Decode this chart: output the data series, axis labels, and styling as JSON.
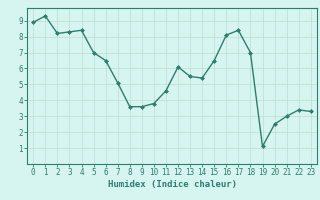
{
  "x": [
    0,
    1,
    2,
    3,
    4,
    5,
    6,
    7,
    8,
    9,
    10,
    11,
    12,
    13,
    14,
    15,
    16,
    17,
    18,
    19,
    20,
    21,
    22,
    23
  ],
  "y": [
    8.9,
    9.3,
    8.2,
    8.3,
    8.4,
    7.0,
    6.5,
    5.1,
    3.6,
    3.6,
    3.8,
    4.6,
    6.1,
    5.5,
    5.4,
    6.5,
    8.1,
    8.4,
    7.0,
    1.1,
    2.5,
    3.0,
    3.4,
    3.3
  ],
  "xlabel": "Humidex (Indice chaleur)",
  "ylim": [
    0,
    9.8
  ],
  "xlim": [
    -0.5,
    23.5
  ],
  "yticks": [
    1,
    2,
    3,
    4,
    5,
    6,
    7,
    8,
    9
  ],
  "xticks": [
    0,
    1,
    2,
    3,
    4,
    5,
    6,
    7,
    8,
    9,
    10,
    11,
    12,
    13,
    14,
    15,
    16,
    17,
    18,
    19,
    20,
    21,
    22,
    23
  ],
  "line_color": "#2e7d6e",
  "marker_color": "#2e7d6e",
  "bg_color": "#d6f5f0",
  "grid_color": "#c0e0d8",
  "axis_color": "#2e7d6e",
  "tick_color": "#2e7d6e",
  "label_color": "#2e7d6e",
  "xlabel_fontsize": 6.5,
  "tick_fontsize": 5.5
}
